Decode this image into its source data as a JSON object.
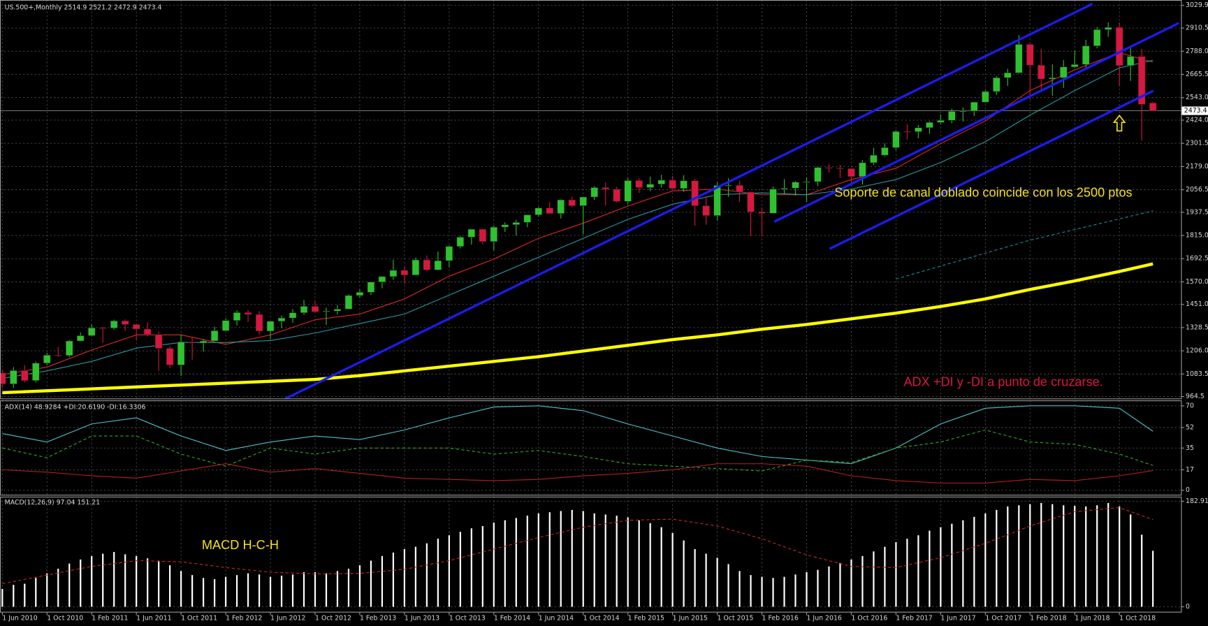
{
  "chart_data": [
    {
      "type": "candlestick",
      "title": "US.500+,Monthly  2514.9 2521.2 2472.9 2473.4",
      "annotations": [
        "Soporte de canal doblado coincide con los 2500 ptos",
        "ADX +DI y -DI a punto de cruzarse."
      ],
      "categories": [
        "1 Jun 2010",
        null,
        null,
        null,
        "1 Oct 2010",
        null,
        null,
        null,
        "1 Feb 2011",
        null,
        null,
        null,
        "1 Jun 2011",
        null,
        null,
        null,
        "1 Oct 2011",
        null,
        null,
        null,
        "1 Feb 2012",
        null,
        null,
        null,
        "1 Jun 2012",
        null,
        null,
        null,
        "1 Oct 2012",
        null,
        null,
        null,
        "1 Feb 2013",
        null,
        null,
        null,
        "1 Jun 2013",
        null,
        null,
        null,
        "1 Oct 2013",
        null,
        null,
        null,
        "1 Feb 2014",
        null,
        null,
        null,
        "1 Jun 2014",
        null,
        null,
        null,
        "1 Oct 2014",
        null,
        null,
        null,
        "1 Feb 2015",
        null,
        null,
        null,
        "1 Jun 2015",
        null,
        null,
        null,
        "1 Oct 2015",
        null,
        null,
        null,
        "1 Feb 2016",
        null,
        null,
        null,
        "1 Jun 2016",
        null,
        null,
        null,
        "1 Oct 2016",
        null,
        null,
        null,
        "1 Feb 2017",
        null,
        null,
        null,
        "1 Jun 2017",
        null,
        null,
        null,
        "1 Oct 2017",
        null,
        null,
        null,
        "1 Feb 2018",
        null,
        null,
        null,
        "1 Jun 2018",
        null,
        null,
        null,
        "1 Oct 2018",
        null,
        null,
        null
      ],
      "open": [
        1089,
        1031,
        1102,
        1049,
        1141,
        1183,
        1181,
        1258,
        1286,
        1327,
        1326,
        1364,
        1345,
        1321,
        1292,
        1219,
        1131,
        1253,
        1247,
        1258,
        1312,
        1366,
        1408,
        1398,
        1310,
        1362,
        1379,
        1407,
        1441,
        1412,
        1416,
        1426,
        1498,
        1515,
        1569,
        1598,
        1631,
        1606,
        1686,
        1633,
        1682,
        1757,
        1806,
        1848,
        1783,
        1859,
        1872,
        1884,
        1924,
        1960,
        1931,
        2003,
        1972,
        2018,
        2068,
        2059,
        1995,
        2105,
        2068,
        2086,
        2107,
        2063,
        2104,
        1972,
        1920,
        2079,
        2080,
        2044,
        1940,
        1932,
        2060,
        2065,
        2097,
        2099,
        2174,
        2171,
        2168,
        2126,
        2199,
        2239,
        2279,
        2364,
        2363,
        2384,
        2412,
        2423,
        2470,
        2472,
        2519,
        2575,
        2648,
        2674,
        2824,
        2714,
        2641,
        2648,
        2705,
        2718,
        2816,
        2902,
        2914,
        2712,
        2760,
        2514.9
      ],
      "high": [
        1105,
        1120,
        1130,
        1150,
        1196,
        1227,
        1263,
        1303,
        1345,
        1332,
        1370,
        1371,
        1346,
        1356,
        1308,
        1230,
        1292,
        1277,
        1269,
        1333,
        1378,
        1420,
        1422,
        1415,
        1363,
        1392,
        1426,
        1475,
        1470,
        1434,
        1448,
        1504,
        1530,
        1570,
        1600,
        1687,
        1654,
        1698,
        1709,
        1730,
        1765,
        1813,
        1849,
        1850,
        1867,
        1884,
        1897,
        1924,
        1968,
        1991,
        2006,
        2019,
        2019,
        2075,
        2094,
        2072,
        2119,
        2117,
        2126,
        2135,
        2130,
        2133,
        2113,
        2021,
        2094,
        2117,
        2104,
        2045,
        1963,
        2073,
        2112,
        2103,
        2121,
        2177,
        2194,
        2188,
        2170,
        2214,
        2278,
        2301,
        2371,
        2401,
        2399,
        2418,
        2454,
        2484,
        2491,
        2520,
        2582,
        2657,
        2695,
        2873,
        2835,
        2801,
        2718,
        2742,
        2791,
        2848,
        2916,
        2940,
        2940,
        2815,
        2800,
        2521.2
      ],
      "low": [
        1011,
        1011,
        1040,
        1040,
        1131,
        1173,
        1173,
        1256,
        1283,
        1249,
        1317,
        1311,
        1259,
        1282,
        1101,
        1114,
        1074,
        1159,
        1202,
        1258,
        1310,
        1340,
        1358,
        1292,
        1267,
        1325,
        1354,
        1396,
        1403,
        1343,
        1398,
        1426,
        1485,
        1501,
        1536,
        1581,
        1560,
        1605,
        1627,
        1633,
        1646,
        1746,
        1767,
        1770,
        1737,
        1834,
        1814,
        1859,
        1915,
        1930,
        1904,
        1964,
        1821,
        2002,
        1973,
        1988,
        1981,
        2040,
        2049,
        2068,
        2056,
        2045,
        1867,
        1872,
        1894,
        2019,
        1993,
        1812,
        1810,
        1932,
        2033,
        2025,
        1992,
        2075,
        2147,
        2119,
        2097,
        2084,
        2187,
        2234,
        2267,
        2322,
        2328,
        2352,
        2405,
        2407,
        2417,
        2446,
        2515,
        2557,
        2605,
        2670,
        2533,
        2586,
        2553,
        2594,
        2698,
        2699,
        2803,
        2864,
        2603,
        2631,
        2316,
        2472.9
      ],
      "close": [
        1031,
        1102,
        1049,
        1141,
        1183,
        1181,
        1258,
        1286,
        1327,
        1326,
        1364,
        1345,
        1321,
        1292,
        1219,
        1131,
        1253,
        1247,
        1258,
        1312,
        1366,
        1408,
        1398,
        1310,
        1362,
        1379,
        1407,
        1441,
        1412,
        1416,
        1426,
        1498,
        1515,
        1569,
        1598,
        1631,
        1606,
        1686,
        1633,
        1682,
        1757,
        1806,
        1848,
        1783,
        1859,
        1872,
        1884,
        1924,
        1960,
        1931,
        2003,
        1972,
        2018,
        2068,
        2059,
        1995,
        2105,
        2068,
        2086,
        2107,
        2063,
        2104,
        1972,
        1920,
        2079,
        2080,
        2044,
        1940,
        1932,
        2060,
        2065,
        2097,
        2099,
        2174,
        2171,
        2168,
        2126,
        2199,
        2239,
        2279,
        2364,
        2363,
        2384,
        2412,
        2423,
        2470,
        2472,
        2519,
        2575,
        2648,
        2674,
        2824,
        2714,
        2641,
        2648,
        2705,
        2718,
        2816,
        2902,
        2914,
        2712,
        2760,
        2507,
        2473.4
      ],
      "up_color": "#2fc22f",
      "down_color": "#d8173f",
      "lines": [
        {
          "color": "#ffff00",
          "x": [
            0,
            4,
            8,
            12,
            16,
            20,
            24,
            28,
            32,
            36,
            40,
            44,
            48,
            52,
            56,
            60,
            64,
            68,
            72,
            76,
            80,
            84,
            88,
            92,
            96,
            100,
            103
          ],
          "values": [
            985,
            995,
            1005,
            1015,
            1025,
            1035,
            1045,
            1055,
            1075,
            1100,
            1125,
            1150,
            1175,
            1205,
            1235,
            1265,
            1290,
            1320,
            1345,
            1375,
            1405,
            1440,
            1480,
            1530,
            1575,
            1625,
            1665
          ]
        },
        {
          "color": "#e02828",
          "x": [
            0,
            4,
            8,
            12,
            16,
            20,
            24,
            28,
            32,
            36,
            40,
            44,
            48,
            52,
            56,
            60,
            64,
            68,
            72,
            76,
            80,
            84,
            88,
            92,
            96,
            100,
            103
          ],
          "values": [
            1080,
            1120,
            1210,
            1290,
            1290,
            1240,
            1290,
            1370,
            1400,
            1480,
            1600,
            1690,
            1800,
            1880,
            1970,
            2050,
            2060,
            2030,
            2030,
            2110,
            2170,
            2300,
            2420,
            2580,
            2690,
            2780,
            2730
          ]
        },
        {
          "color": "#259ba3",
          "x": [
            0,
            4,
            8,
            12,
            16,
            20,
            24,
            28,
            32,
            36,
            40,
            44,
            48,
            52,
            56,
            60,
            64,
            68,
            72,
            76,
            80,
            84,
            88,
            92,
            96,
            100,
            103
          ],
          "values": [
            1060,
            1100,
            1150,
            1220,
            1250,
            1250,
            1260,
            1300,
            1350,
            1400,
            1500,
            1600,
            1700,
            1800,
            1900,
            1980,
            2030,
            2040,
            2030,
            2060,
            2110,
            2200,
            2310,
            2450,
            2580,
            2700,
            2740
          ]
        },
        {
          "color": "#1e8c96",
          "dashed": true,
          "x": [
            80,
            92,
            103
          ],
          "values": [
            1585,
            1790,
            1945
          ]
        }
      ],
      "trendlines": [
        {
          "color": "#1c1cf0",
          "x": [
            25.31,
            97.59
          ],
          "values": [
            952.3,
            3038.0
          ]
        },
        {
          "color": "#1c1cf0",
          "x": [
            69.1,
            105.31
          ],
          "values": [
            1887.4,
            2936.4
          ]
        },
        {
          "color": "#1c1cf0",
          "x": [
            74.07,
            103.03
          ],
          "values": [
            1745.1,
            2578.6
          ]
        }
      ],
      "ylim": [
        964.5,
        3029.9
      ],
      "yticks": [
        3029.9,
        2910.5,
        {
          "value": 2788.0,
          "label": "2788.0"
        },
        2665.5,
        {
          "value": 2543.0,
          "label": "2543.0"
        },
        {
          "value": 2424.0,
          "label": "2424.0"
        },
        2301.5,
        {
          "value": 2179.0,
          "label": "2179.0"
        },
        2056.5,
        1937.5,
        {
          "value": 1815.0,
          "label": "1815.0"
        },
        1692.5,
        {
          "value": 1570.0,
          "label": "1570.0"
        },
        {
          "value": 1451.0,
          "label": "1451.0"
        },
        1328.5,
        {
          "value": 1206.0,
          "label": "1206.0"
        },
        1083.5,
        964.5
      ],
      "grid": true
    },
    {
      "type": "line",
      "title": "ADX(14) 48.9284 +DI:20.6190 -DI:16.3306",
      "series": [
        {
          "color": "#4cc4cc",
          "x": [
            0,
            4,
            8,
            12,
            16,
            20,
            24,
            28,
            32,
            36,
            40,
            44,
            48,
            52,
            56,
            60,
            64,
            68,
            72,
            76,
            80,
            84,
            88,
            92,
            96,
            100,
            103
          ],
          "values": [
            47,
            40,
            55,
            60,
            45,
            33,
            40,
            45,
            42,
            50,
            60,
            69,
            70,
            66,
            55,
            45,
            35,
            28,
            25,
            22,
            35,
            55,
            68,
            70,
            70,
            68,
            48.9284
          ]
        },
        {
          "color": "#2eaa2e",
          "dashed": true,
          "x": [
            0,
            4,
            8,
            12,
            16,
            20,
            24,
            28,
            32,
            36,
            40,
            44,
            48,
            52,
            56,
            60,
            64,
            68,
            72,
            76,
            80,
            84,
            88,
            92,
            96,
            100,
            103
          ],
          "values": [
            35,
            27,
            45,
            45,
            30,
            20,
            35,
            30,
            35,
            35,
            35,
            30,
            33,
            28,
            22,
            20,
            18,
            16,
            25,
            23,
            35,
            40,
            50,
            40,
            38,
            30,
            20.619
          ]
        },
        {
          "color": "#b4201e",
          "x": [
            0,
            4,
            8,
            12,
            16,
            20,
            24,
            28,
            32,
            36,
            40,
            44,
            48,
            52,
            56,
            60,
            64,
            68,
            72,
            76,
            80,
            84,
            88,
            92,
            96,
            100,
            103
          ],
          "values": [
            17,
            15,
            12,
            10,
            16,
            22,
            15,
            18,
            14,
            10,
            9,
            8,
            9,
            12,
            14,
            17,
            22,
            22,
            20,
            12,
            8,
            6,
            6,
            9,
            8,
            12,
            16.3306
          ]
        }
      ],
      "ylim": [
        -4,
        74.5
      ],
      "yticks": [
        70,
        52,
        35,
        17,
        0
      ],
      "grid": true
    },
    {
      "type": "bar",
      "title": "MACD(12,26,9) 97.04 151.21",
      "annotations": [
        "MACD H-C-H"
      ],
      "color": "#ffffff",
      "values": [
        31,
        38,
        40,
        50,
        58,
        66,
        75,
        82,
        88,
        92,
        95,
        91,
        88,
        84,
        80,
        72,
        62,
        55,
        50,
        48,
        52,
        55,
        58,
        56,
        52,
        54,
        56,
        60,
        60,
        58,
        62,
        66,
        72,
        80,
        88,
        94,
        100,
        104,
        110,
        118,
        124,
        130,
        136,
        140,
        146,
        150,
        154,
        158,
        162,
        164,
        166,
        168,
        166,
        162,
        160,
        158,
        155,
        150,
        145,
        138,
        128,
        115,
        100,
        92,
        85,
        74,
        62,
        55,
        52,
        50,
        52,
        56,
        60,
        64,
        70,
        76,
        82,
        88,
        96,
        104,
        112,
        118,
        124,
        132,
        138,
        144,
        150,
        156,
        162,
        168,
        174,
        176,
        178,
        180,
        178,
        176,
        175,
        174,
        176,
        180,
        174,
        160,
        125,
        97.04
      ],
      "signal": {
        "color": "#cc2626",
        "dashed": true,
        "x": [
          0,
          4,
          8,
          12,
          16,
          20,
          24,
          28,
          32,
          36,
          40,
          44,
          48,
          52,
          56,
          60,
          64,
          68,
          72,
          76,
          80,
          84,
          88,
          92,
          96,
          100,
          103
        ],
        "values": [
          40,
          55,
          70,
          80,
          78,
          68,
          60,
          57,
          58,
          65,
          80,
          100,
          120,
          138,
          150,
          152,
          140,
          118,
          90,
          70,
          68,
          85,
          110,
          140,
          165,
          172,
          151.21
        ]
      },
      "ylim": [
        -9.3,
        191
      ],
      "yticks": [
        182.91,
        0
      ],
      "grid": true
    }
  ]
}
